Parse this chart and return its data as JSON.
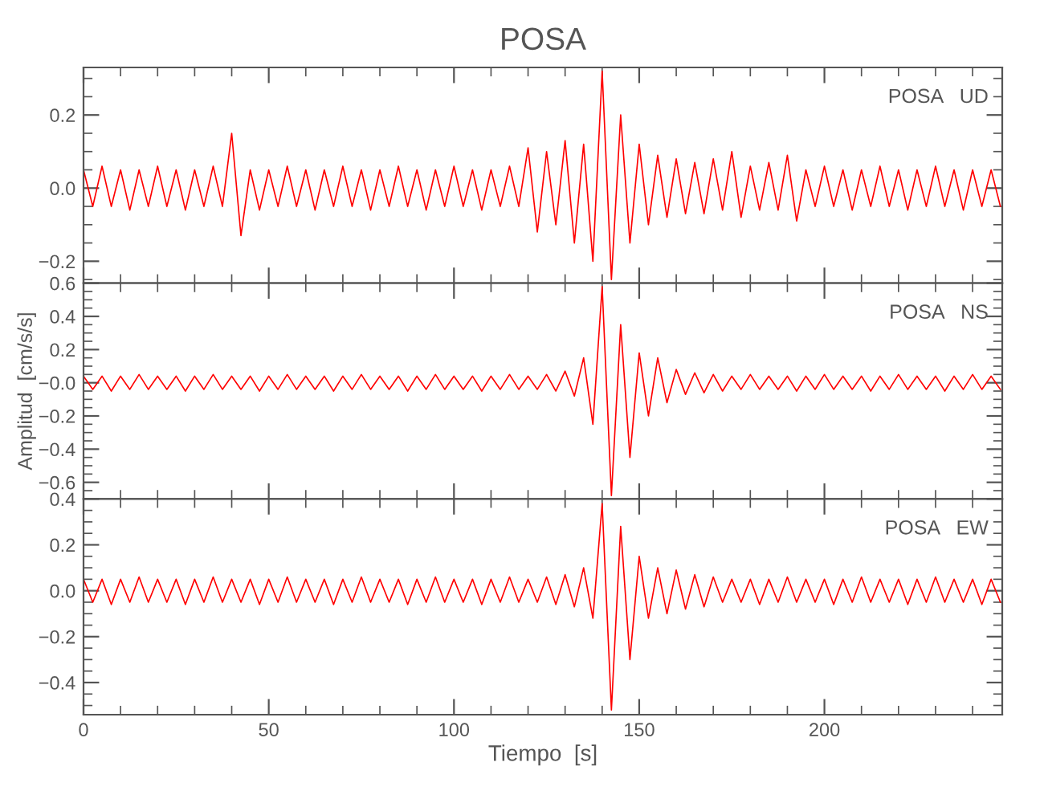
{
  "chart_data": [
    {
      "type": "line",
      "title": "POSA",
      "annotations": [
        "POSA   UD"
      ],
      "tick_labels": "y",
      "x": [
        0,
        2.5,
        5,
        7.5,
        10,
        12.5,
        15,
        17.5,
        20,
        22.5,
        25,
        27.5,
        30,
        32.5,
        35,
        37.5,
        40,
        42.5,
        45,
        47.5,
        50,
        52.5,
        55,
        57.5,
        60,
        62.5,
        65,
        67.5,
        70,
        72.5,
        75,
        77.5,
        80,
        82.5,
        85,
        87.5,
        90,
        92.5,
        95,
        97.5,
        100,
        102.5,
        105,
        107.5,
        110,
        112.5,
        115,
        117.5,
        120,
        122.5,
        125,
        127.5,
        130,
        132.5,
        135,
        137.5,
        140,
        142.5,
        145,
        147.5,
        150,
        152.5,
        155,
        157.5,
        160,
        162.5,
        165,
        167.5,
        170,
        172.5,
        175,
        177.5,
        180,
        182.5,
        185,
        187.5,
        190,
        192.5,
        195,
        197.5,
        200,
        202.5,
        205,
        207.5,
        210,
        212.5,
        215,
        217.5,
        220,
        222.5,
        225,
        227.5,
        230,
        232.5,
        235,
        237.5,
        240,
        242.5,
        245,
        247.5
      ],
      "series": [
        {
          "color": "#ff0000",
          "values": [
            0.05,
            -0.05,
            0.06,
            -0.05,
            0.05,
            -0.06,
            0.05,
            -0.05,
            0.06,
            -0.05,
            0.05,
            -0.06,
            0.05,
            -0.05,
            0.06,
            -0.05,
            0.15,
            -0.13,
            0.05,
            -0.06,
            0.05,
            -0.05,
            0.06,
            -0.05,
            0.05,
            -0.06,
            0.05,
            -0.05,
            0.06,
            -0.05,
            0.05,
            -0.06,
            0.05,
            -0.05,
            0.06,
            -0.05,
            0.05,
            -0.06,
            0.05,
            -0.05,
            0.06,
            -0.05,
            0.05,
            -0.06,
            0.05,
            -0.05,
            0.06,
            -0.05,
            0.11,
            -0.12,
            0.1,
            -0.1,
            0.13,
            -0.15,
            0.12,
            -0.2,
            0.32,
            -0.25,
            0.2,
            -0.15,
            0.12,
            -0.1,
            0.09,
            -0.08,
            0.08,
            -0.07,
            0.07,
            -0.07,
            0.08,
            -0.06,
            0.1,
            -0.08,
            0.06,
            -0.06,
            0.07,
            -0.06,
            0.09,
            -0.09,
            0.05,
            -0.05,
            0.06,
            -0.05,
            0.05,
            -0.06,
            0.05,
            -0.05,
            0.06,
            -0.05,
            0.05,
            -0.06,
            0.05,
            -0.05,
            0.06,
            -0.05,
            0.05,
            -0.06,
            0.05,
            -0.05,
            0.05,
            -0.05
          ]
        }
      ],
      "xlim": [
        0,
        248
      ],
      "xticks": [
        0,
        50,
        100,
        150,
        200
      ],
      "ylim": [
        -0.26,
        0.33
      ],
      "yticks": [
        {
          "value": -0.2,
          "label": "−0.2"
        },
        {
          "value": 0,
          "label": "0.0"
        },
        {
          "value": 0.2,
          "label": "0.2"
        }
      ]
    },
    {
      "type": "line",
      "ylabel": "Amplitud  [cm/s/s]",
      "annotations": [
        "POSA   NS"
      ],
      "tick_labels": "y",
      "x": [
        0,
        2.5,
        5,
        7.5,
        10,
        12.5,
        15,
        17.5,
        20,
        22.5,
        25,
        27.5,
        30,
        32.5,
        35,
        37.5,
        40,
        42.5,
        45,
        47.5,
        50,
        52.5,
        55,
        57.5,
        60,
        62.5,
        65,
        67.5,
        70,
        72.5,
        75,
        77.5,
        80,
        82.5,
        85,
        87.5,
        90,
        92.5,
        95,
        97.5,
        100,
        102.5,
        105,
        107.5,
        110,
        112.5,
        115,
        117.5,
        120,
        122.5,
        125,
        127.5,
        130,
        132.5,
        135,
        137.5,
        140,
        142.5,
        145,
        147.5,
        150,
        152.5,
        155,
        157.5,
        160,
        162.5,
        165,
        167.5,
        170,
        172.5,
        175,
        177.5,
        180,
        182.5,
        185,
        187.5,
        190,
        192.5,
        195,
        197.5,
        200,
        202.5,
        205,
        207.5,
        210,
        212.5,
        215,
        217.5,
        220,
        222.5,
        225,
        227.5,
        230,
        232.5,
        235,
        237.5,
        240,
        242.5,
        245,
        247.5
      ],
      "series": [
        {
          "color": "#ff0000",
          "values": [
            0.04,
            -0.04,
            0.04,
            -0.05,
            0.04,
            -0.04,
            0.05,
            -0.04,
            0.04,
            -0.04,
            0.04,
            -0.05,
            0.04,
            -0.04,
            0.05,
            -0.04,
            0.04,
            -0.04,
            0.04,
            -0.05,
            0.04,
            -0.04,
            0.05,
            -0.04,
            0.04,
            -0.04,
            0.04,
            -0.05,
            0.04,
            -0.04,
            0.05,
            -0.04,
            0.04,
            -0.04,
            0.04,
            -0.05,
            0.04,
            -0.04,
            0.05,
            -0.04,
            0.04,
            -0.04,
            0.04,
            -0.05,
            0.04,
            -0.04,
            0.05,
            -0.04,
            0.04,
            -0.04,
            0.05,
            -0.05,
            0.07,
            -0.08,
            0.15,
            -0.25,
            0.58,
            -0.68,
            0.35,
            -0.45,
            0.18,
            -0.2,
            0.15,
            -0.12,
            0.08,
            -0.07,
            0.06,
            -0.06,
            0.05,
            -0.05,
            0.04,
            -0.04,
            0.05,
            -0.04,
            0.04,
            -0.04,
            0.04,
            -0.05,
            0.04,
            -0.04,
            0.05,
            -0.04,
            0.04,
            -0.04,
            0.04,
            -0.05,
            0.04,
            -0.04,
            0.05,
            -0.04,
            0.04,
            -0.04,
            0.04,
            -0.05,
            0.04,
            -0.04,
            0.05,
            -0.04,
            0.04,
            -0.04
          ]
        }
      ],
      "xlim": [
        0,
        248
      ],
      "xticks": [
        0,
        50,
        100,
        150,
        200
      ],
      "ylim": [
        -0.7,
        0.6
      ],
      "yticks": [
        {
          "value": -0.6,
          "label": "−0.6"
        },
        {
          "value": -0.4,
          "label": "−0.4"
        },
        {
          "value": -0.2,
          "label": "−0.2"
        },
        {
          "value": 0,
          "label": "−0.0"
        },
        {
          "value": 0.2,
          "label": "0.2"
        },
        {
          "value": 0.4,
          "label": "0.4"
        },
        {
          "value": 0.6,
          "label": "0.6"
        }
      ]
    },
    {
      "type": "line",
      "xlabel": "Tiempo  [s]",
      "annotations": [
        "POSA   EW"
      ],
      "x": [
        0,
        2.5,
        5,
        7.5,
        10,
        12.5,
        15,
        17.5,
        20,
        22.5,
        25,
        27.5,
        30,
        32.5,
        35,
        37.5,
        40,
        42.5,
        45,
        47.5,
        50,
        52.5,
        55,
        57.5,
        60,
        62.5,
        65,
        67.5,
        70,
        72.5,
        75,
        77.5,
        80,
        82.5,
        85,
        87.5,
        90,
        92.5,
        95,
        97.5,
        100,
        102.5,
        105,
        107.5,
        110,
        112.5,
        115,
        117.5,
        120,
        122.5,
        125,
        127.5,
        130,
        132.5,
        135,
        137.5,
        140,
        142.5,
        145,
        147.5,
        150,
        152.5,
        155,
        157.5,
        160,
        162.5,
        165,
        167.5,
        170,
        172.5,
        175,
        177.5,
        180,
        182.5,
        185,
        187.5,
        190,
        192.5,
        195,
        197.5,
        200,
        202.5,
        205,
        207.5,
        210,
        212.5,
        215,
        217.5,
        220,
        222.5,
        225,
        227.5,
        230,
        232.5,
        235,
        237.5,
        240,
        242.5,
        245,
        247.5
      ],
      "series": [
        {
          "color": "#ff0000",
          "values": [
            0.05,
            -0.05,
            0.05,
            -0.06,
            0.05,
            -0.05,
            0.06,
            -0.05,
            0.05,
            -0.05,
            0.05,
            -0.06,
            0.05,
            -0.05,
            0.06,
            -0.05,
            0.05,
            -0.05,
            0.05,
            -0.06,
            0.05,
            -0.05,
            0.06,
            -0.05,
            0.05,
            -0.05,
            0.05,
            -0.06,
            0.05,
            -0.05,
            0.06,
            -0.05,
            0.05,
            -0.05,
            0.05,
            -0.06,
            0.05,
            -0.05,
            0.06,
            -0.05,
            0.05,
            -0.05,
            0.05,
            -0.06,
            0.05,
            -0.05,
            0.06,
            -0.05,
            0.05,
            -0.05,
            0.06,
            -0.06,
            0.07,
            -0.07,
            0.1,
            -0.12,
            0.38,
            -0.52,
            0.28,
            -0.3,
            0.15,
            -0.12,
            0.1,
            -0.1,
            0.09,
            -0.08,
            0.07,
            -0.07,
            0.06,
            -0.05,
            0.05,
            -0.05,
            0.05,
            -0.06,
            0.05,
            -0.05,
            0.06,
            -0.05,
            0.05,
            -0.05,
            0.05,
            -0.06,
            0.05,
            -0.05,
            0.06,
            -0.05,
            0.05,
            -0.05,
            0.05,
            -0.06,
            0.05,
            -0.05,
            0.06,
            -0.05,
            0.05,
            -0.05,
            0.05,
            -0.06,
            0.05,
            -0.05
          ]
        }
      ],
      "xlim": [
        0,
        248
      ],
      "xticks": [
        0,
        50,
        100,
        150,
        200
      ],
      "ylim": [
        -0.54,
        0.4
      ],
      "yticks": [
        {
          "value": -0.4,
          "label": "−0.4"
        },
        {
          "value": -0.2,
          "label": "−0.2"
        },
        {
          "value": 0,
          "label": "0.0"
        },
        {
          "value": 0.2,
          "label": "0.2"
        },
        {
          "value": 0.4,
          "label": "0.4"
        }
      ]
    }
  ]
}
